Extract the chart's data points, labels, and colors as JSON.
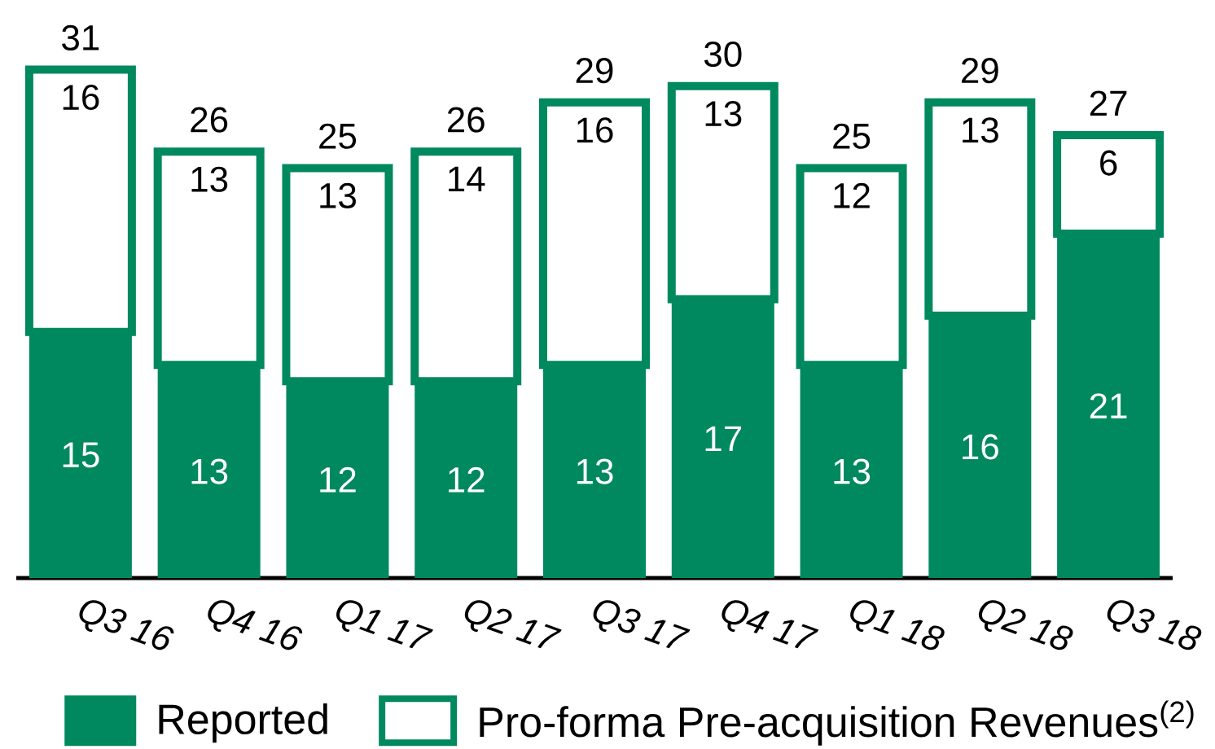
{
  "chart_data": {
    "type": "bar",
    "stacked": true,
    "categories": [
      "Q3 16",
      "Q4 16",
      "Q1 17",
      "Q2 17",
      "Q3 17",
      "Q4 17",
      "Q1 18",
      "Q2 18",
      "Q3 18"
    ],
    "series": [
      {
        "name": "Reported",
        "color": "#00895e",
        "values": [
          15,
          13,
          12,
          12,
          13,
          17,
          13,
          16,
          21
        ],
        "value_labels": [
          "15",
          "13",
          "12",
          "12",
          "13",
          "17",
          "13",
          "16",
          "21"
        ]
      },
      {
        "name": "Pro-forma Pre-acquisition Revenues$^{(2)}$",
        "color": "#00895e",
        "values": [
          16,
          13,
          13,
          14,
          16,
          13,
          12,
          13,
          6
        ],
        "value_labels": [
          "16",
          "13",
          "13",
          "14",
          "16",
          "13",
          "12",
          "13",
          "6"
        ]
      }
    ],
    "totals": [
      "31",
      "26",
      "25",
      "26",
      "29",
      "30",
      "25",
      "29",
      "27"
    ],
    "legend": "bottom"
  }
}
